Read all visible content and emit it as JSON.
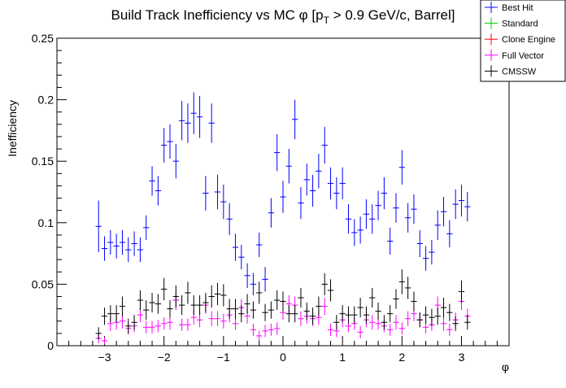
{
  "chart_data": {
    "type": "scatter",
    "title": "Build Track Inefficiency vs MC φ [p_T > 0.9 GeV/c, Barrel]",
    "title_parts": {
      "pre": "Build Track Inefficiency vs MC φ [p",
      "sub": "T",
      "post": " > 0.9 GeV/c, Barrel]"
    },
    "xlabel": "φ",
    "ylabel": "Inefficiency",
    "xlim": [
      -3.8,
      3.8
    ],
    "ylim": [
      0,
      0.25
    ],
    "x_ticks": [
      -3,
      -2,
      -1,
      0,
      1,
      2,
      3
    ],
    "x_tick_labels": [
      "−3",
      "−2",
      "−1",
      "0",
      "1",
      "2",
      "3"
    ],
    "y_ticks": [
      0,
      0.05,
      0.1,
      0.15,
      0.2,
      0.25
    ],
    "y_tick_labels": [
      "0",
      "0.05",
      "0.1",
      "0.15",
      "0.2",
      "0.25"
    ],
    "grid": false,
    "legend_position": "top-right",
    "x": [
      -3.1,
      -3.0,
      -2.9,
      -2.8,
      -2.7,
      -2.6,
      -2.5,
      -2.4,
      -2.3,
      -2.2,
      -2.1,
      -2.0,
      -1.9,
      -1.8,
      -1.7,
      -1.6,
      -1.5,
      -1.4,
      -1.3,
      -1.2,
      -1.1,
      -1.0,
      -0.9,
      -0.8,
      -0.7,
      -0.6,
      -0.5,
      -0.4,
      -0.3,
      -0.2,
      -0.1,
      0.0,
      0.1,
      0.2,
      0.3,
      0.4,
      0.5,
      0.6,
      0.7,
      0.8,
      0.9,
      1.0,
      1.1,
      1.2,
      1.3,
      1.4,
      1.5,
      1.6,
      1.7,
      1.8,
      1.9,
      2.0,
      2.1,
      2.2,
      2.3,
      2.4,
      2.5,
      2.6,
      2.7,
      2.8,
      2.9,
      3.0,
      3.1
    ],
    "series": [
      {
        "name": "Best Hit",
        "color": "#0000ff",
        "values": [
          0.097,
          0.079,
          0.084,
          0.081,
          0.084,
          0.078,
          0.083,
          0.078,
          0.096,
          0.134,
          0.126,
          0.163,
          0.166,
          0.15,
          0.183,
          0.181,
          0.189,
          0.186,
          0.124,
          0.181,
          0.125,
          0.117,
          0.103,
          0.08,
          0.072,
          0.057,
          0.05,
          0.082,
          0.054,
          0.108,
          0.157,
          0.121,
          0.146,
          0.184,
          0.116,
          0.135,
          0.126,
          0.142,
          0.163,
          0.132,
          0.124,
          0.132,
          0.103,
          0.092,
          0.094,
          0.107,
          0.103,
          0.114,
          0.124,
          0.085,
          0.112,
          0.145,
          0.104,
          0.111,
          0.083,
          0.071,
          0.076,
          0.098,
          0.109,
          0.091,
          0.115,
          0.118,
          0.113
        ],
        "errors": [
          0.021,
          0.01,
          0.01,
          0.01,
          0.01,
          0.01,
          0.01,
          0.01,
          0.01,
          0.012,
          0.012,
          0.014,
          0.014,
          0.014,
          0.016,
          0.016,
          0.017,
          0.017,
          0.014,
          0.016,
          0.014,
          0.014,
          0.013,
          0.011,
          0.01,
          0.01,
          0.009,
          0.01,
          0.01,
          0.012,
          0.015,
          0.013,
          0.014,
          0.016,
          0.013,
          0.013,
          0.013,
          0.014,
          0.015,
          0.013,
          0.013,
          0.013,
          0.012,
          0.011,
          0.011,
          0.012,
          0.012,
          0.012,
          0.013,
          0.011,
          0.012,
          0.014,
          0.012,
          0.012,
          0.011,
          0.01,
          0.01,
          0.012,
          0.012,
          0.011,
          0.012,
          0.013,
          0.012
        ]
      },
      {
        "name": "Standard",
        "color": "#00cc00",
        "values": [],
        "errors": []
      },
      {
        "name": "Clone Engine",
        "color": "#ff0000",
        "values": [],
        "errors": []
      },
      {
        "name": "Full Vector",
        "color": "#ff00ff",
        "values": [
          0.006,
          0.004,
          0.018,
          0.019,
          0.02,
          0.014,
          0.016,
          0.025,
          0.015,
          0.015,
          0.016,
          0.018,
          0.019,
          0.037,
          0.017,
          0.017,
          0.023,
          0.021,
          0.033,
          0.022,
          0.022,
          0.02,
          0.025,
          0.018,
          0.031,
          0.024,
          0.013,
          0.008,
          0.012,
          0.013,
          0.014,
          0.027,
          0.034,
          0.033,
          0.022,
          0.024,
          0.022,
          0.023,
          0.032,
          0.013,
          0.012,
          0.021,
          0.016,
          0.018,
          0.011,
          0.021,
          0.019,
          0.018,
          0.016,
          0.013,
          0.019,
          0.014,
          0.022,
          0.026,
          0.021,
          0.015,
          0.017,
          0.033,
          0.018,
          0.013,
          0.021,
          0.036,
          0.024
        ],
        "errors": [
          0.004,
          0.003,
          0.006,
          0.006,
          0.006,
          0.005,
          0.005,
          0.006,
          0.005,
          0.005,
          0.005,
          0.005,
          0.006,
          0.008,
          0.005,
          0.005,
          0.006,
          0.006,
          0.007,
          0.006,
          0.006,
          0.006,
          0.006,
          0.005,
          0.007,
          0.006,
          0.005,
          0.004,
          0.005,
          0.005,
          0.005,
          0.006,
          0.007,
          0.007,
          0.006,
          0.006,
          0.006,
          0.006,
          0.007,
          0.005,
          0.005,
          0.006,
          0.005,
          0.005,
          0.005,
          0.006,
          0.006,
          0.005,
          0.005,
          0.005,
          0.006,
          0.005,
          0.006,
          0.006,
          0.006,
          0.005,
          0.005,
          0.007,
          0.006,
          0.005,
          0.006,
          0.007,
          0.006
        ]
      },
      {
        "name": "CMSSW",
        "color": "#000000",
        "values": [
          0.01,
          0.024,
          0.026,
          0.026,
          0.032,
          0.016,
          0.019,
          0.037,
          0.029,
          0.035,
          0.034,
          0.046,
          0.03,
          0.04,
          0.033,
          0.043,
          0.033,
          0.033,
          0.035,
          0.04,
          0.042,
          0.041,
          0.03,
          0.03,
          0.026,
          0.034,
          0.029,
          0.043,
          0.027,
          0.029,
          0.037,
          0.036,
          0.026,
          0.026,
          0.039,
          0.028,
          0.024,
          0.032,
          0.05,
          0.045,
          0.019,
          0.026,
          0.025,
          0.025,
          0.031,
          0.025,
          0.039,
          0.028,
          0.019,
          0.026,
          0.038,
          0.052,
          0.047,
          0.036,
          0.021,
          0.025,
          0.023,
          0.024,
          0.031,
          0.027,
          0.018,
          0.044,
          0.019
        ],
        "errors": [
          0.005,
          0.007,
          0.007,
          0.007,
          0.008,
          0.006,
          0.006,
          0.008,
          0.008,
          0.008,
          0.008,
          0.009,
          0.007,
          0.009,
          0.008,
          0.009,
          0.008,
          0.008,
          0.008,
          0.009,
          0.009,
          0.009,
          0.008,
          0.008,
          0.007,
          0.008,
          0.007,
          0.009,
          0.007,
          0.007,
          0.008,
          0.008,
          0.007,
          0.007,
          0.008,
          0.007,
          0.007,
          0.008,
          0.009,
          0.009,
          0.006,
          0.007,
          0.007,
          0.007,
          0.008,
          0.007,
          0.008,
          0.007,
          0.006,
          0.007,
          0.008,
          0.01,
          0.009,
          0.008,
          0.006,
          0.007,
          0.007,
          0.007,
          0.008,
          0.007,
          0.006,
          0.009,
          0.006
        ]
      }
    ]
  }
}
